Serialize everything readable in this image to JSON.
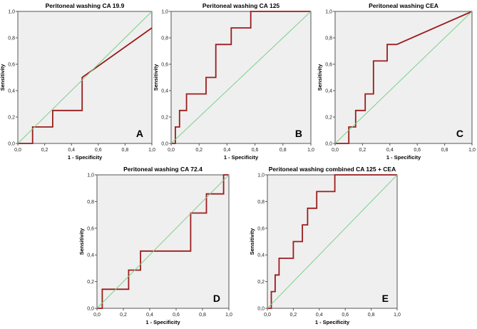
{
  "figure": {
    "xlabel": "1 - Specificity",
    "ylabel": "Sensitivity",
    "x_ticks": [
      "0,0",
      "0,2",
      "0,4",
      "0,6",
      "0,8",
      "1,0"
    ],
    "y_ticks": [
      "0,0",
      "0,2",
      "0,4",
      "0,6",
      "0,8",
      "1,0"
    ],
    "colors": {
      "roc": "#9b1c1c",
      "reference": "#7ccf8a",
      "plot_bg": "#efefef",
      "axis": "#555555"
    }
  },
  "chart_data": [
    {
      "type": "line",
      "panel": "A",
      "title": "Peritoneal washing CA 19.9",
      "xlabel": "1 - Specificity",
      "ylabel": "Sensitivity",
      "xlim": [
        0,
        1
      ],
      "ylim": [
        0,
        1
      ],
      "series": [
        {
          "name": "ROC",
          "x": [
            0,
            0.11,
            0.11,
            0.26,
            0.26,
            0.48,
            0.48,
            1.0
          ],
          "y": [
            0,
            0,
            0.125,
            0.125,
            0.25,
            0.25,
            0.5,
            0.875
          ]
        },
        {
          "name": "Reference line",
          "x": [
            0,
            1
          ],
          "y": [
            0,
            1
          ]
        }
      ]
    },
    {
      "type": "line",
      "panel": "B",
      "title": "Peritoneal washing CA 125",
      "xlabel": "1 - Specificity",
      "ylabel": "Sensitivity",
      "xlim": [
        0,
        1
      ],
      "ylim": [
        0,
        1
      ],
      "series": [
        {
          "name": "ROC",
          "x": [
            0,
            0.03,
            0.03,
            0.06,
            0.06,
            0.11,
            0.11,
            0.25,
            0.25,
            0.32,
            0.32,
            0.43,
            0.43,
            0.57,
            0.57,
            1.0
          ],
          "y": [
            0,
            0,
            0.125,
            0.125,
            0.25,
            0.25,
            0.375,
            0.375,
            0.5,
            0.5,
            0.75,
            0.75,
            0.875,
            0.875,
            1.0,
            1.0
          ]
        },
        {
          "name": "Reference line",
          "x": [
            0,
            1
          ],
          "y": [
            0,
            1
          ]
        }
      ]
    },
    {
      "type": "line",
      "panel": "C",
      "title": "Peritoneal washing CEA",
      "xlabel": "1 - Specificity",
      "ylabel": "Sensitivity",
      "xlim": [
        0,
        1
      ],
      "ylim": [
        0,
        1
      ],
      "series": [
        {
          "name": "ROC",
          "x": [
            0,
            0.1,
            0.1,
            0.15,
            0.15,
            0.22,
            0.22,
            0.28,
            0.28,
            0.38,
            0.38,
            0.45,
            1.0
          ],
          "y": [
            0,
            0,
            0.125,
            0.125,
            0.25,
            0.25,
            0.375,
            0.375,
            0.625,
            0.625,
            0.75,
            0.75,
            1.0
          ]
        },
        {
          "name": "Reference line",
          "x": [
            0,
            1
          ],
          "y": [
            0,
            1
          ]
        }
      ]
    },
    {
      "type": "line",
      "panel": "D",
      "title": "Peritoneal washing CA 72.4",
      "xlabel": "1 - Specificity",
      "ylabel": "Sensitivity",
      "xlim": [
        0,
        1
      ],
      "ylim": [
        0,
        1
      ],
      "series": [
        {
          "name": "ROC",
          "x": [
            0,
            0.04,
            0.04,
            0.24,
            0.24,
            0.33,
            0.33,
            0.71,
            0.71,
            0.83,
            0.83,
            0.96,
            0.96,
            1.0
          ],
          "y": [
            0,
            0,
            0.143,
            0.143,
            0.286,
            0.286,
            0.429,
            0.429,
            0.714,
            0.714,
            0.857,
            0.857,
            1.0,
            1.0
          ]
        },
        {
          "name": "Reference line",
          "x": [
            0,
            1
          ],
          "y": [
            0,
            1
          ]
        }
      ]
    },
    {
      "type": "line",
      "panel": "E",
      "title": "Peritoneal washing combined CA 125 + CEA",
      "xlabel": "1 - Specificity",
      "ylabel": "Sensitivity",
      "xlim": [
        0,
        1
      ],
      "ylim": [
        0,
        1
      ],
      "series": [
        {
          "name": "ROC",
          "x": [
            0,
            0.03,
            0.03,
            0.06,
            0.06,
            0.09,
            0.09,
            0.2,
            0.2,
            0.27,
            0.27,
            0.31,
            0.31,
            0.38,
            0.38,
            0.52,
            0.52,
            1.0
          ],
          "y": [
            0,
            0,
            0.125,
            0.125,
            0.25,
            0.25,
            0.375,
            0.375,
            0.5,
            0.5,
            0.625,
            0.625,
            0.75,
            0.75,
            0.875,
            0.875,
            1.0,
            1.0
          ]
        },
        {
          "name": "Reference line",
          "x": [
            0,
            1
          ],
          "y": [
            0,
            1
          ]
        }
      ]
    }
  ]
}
